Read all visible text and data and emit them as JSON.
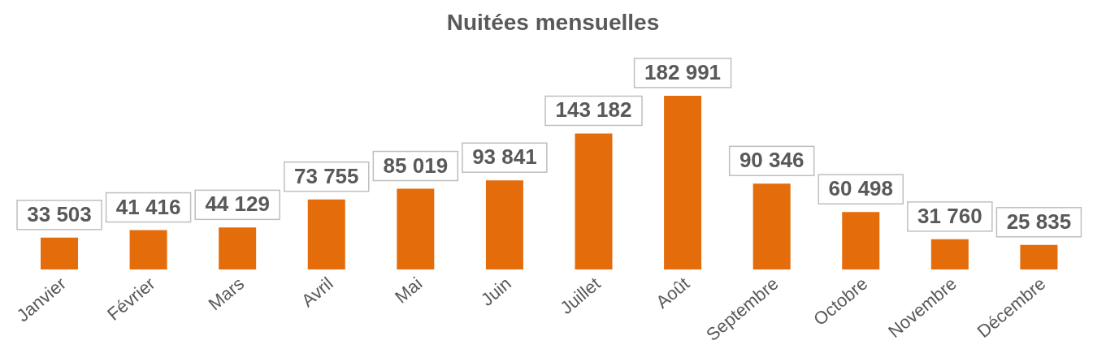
{
  "chart_data": {
    "type": "bar",
    "title": "Nuitées mensuelles",
    "categories": [
      "Janvier",
      "Février",
      "Mars",
      "Avril",
      "Mai",
      "Juin",
      "Juillet",
      "Août",
      "Septembre",
      "Octobre",
      "Novembre",
      "Décembre"
    ],
    "values": [
      33503,
      41416,
      44129,
      73755,
      85019,
      93841,
      143182,
      182991,
      90346,
      60498,
      31760,
      25835
    ],
    "value_labels": [
      "33 503",
      "41 416",
      "44 129",
      "73 755",
      "85 019",
      "93 841",
      "143 182",
      "182 991",
      "90 346",
      "60 498",
      "31 760",
      "25 835"
    ],
    "color": "#e46c0a",
    "tick_labels": "x"
  }
}
